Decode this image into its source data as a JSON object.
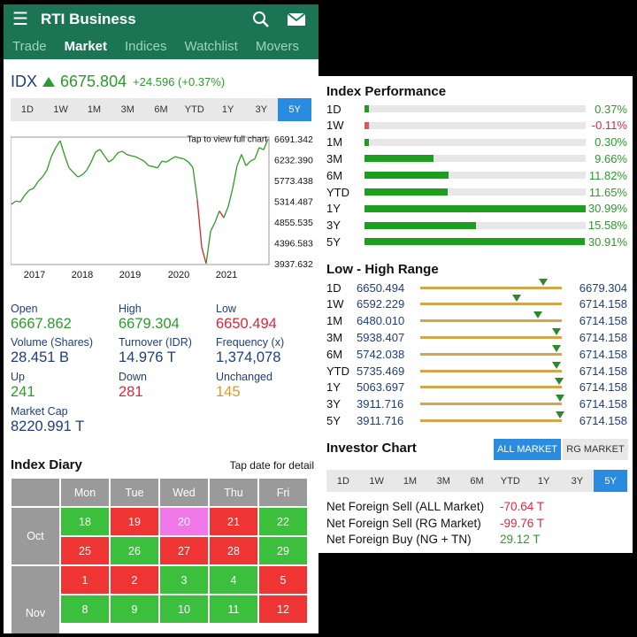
{
  "app": {
    "title": "RTI Business"
  },
  "nav_tabs": [
    {
      "label": "Trade",
      "active": false
    },
    {
      "label": "Market",
      "active": true
    },
    {
      "label": "Indices",
      "active": false
    },
    {
      "label": "Watchlist",
      "active": false
    },
    {
      "label": "Movers",
      "active": false
    }
  ],
  "index": {
    "name": "IDX",
    "value": "6675.804",
    "change": "+24.596 (+0.37%)"
  },
  "periods": [
    "1D",
    "1W",
    "1M",
    "3M",
    "6M",
    "YTD",
    "1Y",
    "3Y",
    "5Y"
  ],
  "active_period": "5Y",
  "chart": {
    "hint": "Tap to view full chart",
    "y_ticks": [
      "6691.342",
      "6232.390",
      "5773.438",
      "5314.487",
      "4855.535",
      "4396.583",
      "3937.632"
    ],
    "x_ticks": [
      "2017",
      "2018",
      "2019",
      "2020",
      "2021"
    ]
  },
  "chart_data": {
    "type": "line",
    "x_ticks": [
      "2017",
      "2018",
      "2019",
      "2020",
      "2021"
    ],
    "ylim": [
      3937.632,
      6691.342
    ],
    "grid": false,
    "series": [
      {
        "values": [
          5250,
          5320,
          5300,
          5450,
          5560,
          5600,
          5750,
          5850,
          6000,
          6300,
          6500,
          6650,
          6330,
          6050,
          5950,
          5850,
          5900,
          6000,
          6180,
          6400,
          6460,
          6320,
          6180,
          6250,
          6380,
          6420,
          6350,
          6320,
          6300,
          6250,
          6200,
          6100,
          6080,
          6050,
          6200,
          6180,
          6240,
          6300,
          6270,
          6250,
          6180,
          6060,
          5350,
          4300,
          3938,
          4650,
          4850,
          5100,
          4950,
          5200,
          5600,
          6100,
          6350,
          6100,
          6200,
          6250,
          6500,
          6450,
          6691
        ]
      }
    ]
  },
  "stats": {
    "open_label": "Open",
    "open": "6667.862",
    "high_label": "High",
    "high": "6679.304",
    "low_label": "Low",
    "low": "6650.494",
    "volume_label": "Volume (Shares)",
    "volume": "28.451 B",
    "turnover_label": "Turnover (IDR)",
    "turnover": "14.976 T",
    "frequency_label": "Frequency (x)",
    "frequency": "1,374,078",
    "up_label": "Up",
    "up": "241",
    "down_label": "Down",
    "down": "281",
    "unchanged_label": "Unchanged",
    "unchanged": "145",
    "mcap_label": "Market Cap",
    "mcap": "8220.991 T"
  },
  "diary": {
    "title": "Index Diary",
    "hint": "Tap date for detail",
    "days": [
      "Mon",
      "Tue",
      "Wed",
      "Thu",
      "Fri"
    ],
    "months": [
      "Oct",
      "Nov"
    ],
    "rows": [
      [
        {
          "d": "18",
          "c": "#3cbf3c"
        },
        {
          "d": "19",
          "c": "#ef3434"
        },
        {
          "d": "20",
          "c": "#f077e8"
        },
        {
          "d": "21",
          "c": "#ef3434"
        },
        {
          "d": "22",
          "c": "#3cbf3c"
        }
      ],
      [
        {
          "d": "25",
          "c": "#ef3434"
        },
        {
          "d": "26",
          "c": "#3cbf3c"
        },
        {
          "d": "27",
          "c": "#ef3434"
        },
        {
          "d": "28",
          "c": "#ef3434"
        },
        {
          "d": "29",
          "c": "#3cbf3c"
        }
      ],
      [
        {
          "d": "1",
          "c": "#ef3434"
        },
        {
          "d": "2",
          "c": "#ef3434"
        },
        {
          "d": "3",
          "c": "#3cbf3c"
        },
        {
          "d": "4",
          "c": "#3cbf3c"
        },
        {
          "d": "5",
          "c": "#ef3434"
        }
      ],
      [
        {
          "d": "8",
          "c": "#3cbf3c"
        },
        {
          "d": "9",
          "c": "#3cbf3c"
        },
        {
          "d": "10",
          "c": "#3cbf3c"
        },
        {
          "d": "11",
          "c": "#3cbf3c"
        },
        {
          "d": "12",
          "c": "#ef3434"
        }
      ]
    ]
  },
  "performance": {
    "title": "Index Performance",
    "rows": [
      {
        "label": "1D",
        "value": "0.37%",
        "pct": 0.37
      },
      {
        "label": "1W",
        "value": "-0.11%",
        "pct": -0.11
      },
      {
        "label": "1M",
        "value": "0.30%",
        "pct": 0.3
      },
      {
        "label": "3M",
        "value": "9.66%",
        "pct": 9.66
      },
      {
        "label": "6M",
        "value": "11.82%",
        "pct": 11.82
      },
      {
        "label": "YTD",
        "value": "11.65%",
        "pct": 11.65
      },
      {
        "label": "1Y",
        "value": "30.99%",
        "pct": 30.99
      },
      {
        "label": "3Y",
        "value": "15.58%",
        "pct": 15.58
      },
      {
        "label": "5Y",
        "value": "30.91%",
        "pct": 30.91
      }
    ]
  },
  "range": {
    "title": "Low - High Range",
    "rows": [
      {
        "label": "1D",
        "low": "6650.494",
        "high": "6679.304",
        "pos": 0.87
      },
      {
        "label": "1W",
        "low": "6592.229",
        "high": "6714.158",
        "pos": 0.68
      },
      {
        "label": "1M",
        "low": "6480.010",
        "high": "6714.158",
        "pos": 0.83
      },
      {
        "label": "3M",
        "low": "5938.407",
        "high": "6714.158",
        "pos": 0.96
      },
      {
        "label": "6M",
        "low": "5742.038",
        "high": "6714.158",
        "pos": 0.96
      },
      {
        "label": "YTD",
        "low": "5735.469",
        "high": "6714.158",
        "pos": 0.96
      },
      {
        "label": "1Y",
        "low": "5063.697",
        "high": "6714.158",
        "pos": 0.98
      },
      {
        "label": "3Y",
        "low": "3911.716",
        "high": "6714.158",
        "pos": 0.99
      },
      {
        "label": "5Y",
        "low": "3911.716",
        "high": "6714.158",
        "pos": 0.99
      }
    ]
  },
  "investor": {
    "title": "Investor Chart",
    "btn_all": "ALL MARKET",
    "btn_rg": "RG MARKET",
    "periods": [
      "1D",
      "1W",
      "1M",
      "3M",
      "6M",
      "YTD",
      "1Y",
      "3Y",
      "5Y"
    ],
    "active_period": "5Y",
    "flows": [
      {
        "label": "Net Foreign Sell (ALL Market)",
        "value": "-70.64 T",
        "color": "#d8283f"
      },
      {
        "label": "Net Foreign Sell (RG Market)",
        "value": "-99.76 T",
        "color": "#d8283f"
      },
      {
        "label": "Net Foreign Buy (NG + TN)",
        "value": "29.12 T",
        "color": "#2c9a2c"
      }
    ]
  },
  "colors": {
    "brand": "#1b7554",
    "accent": "#2a8ce0",
    "up": "#2c9a2c",
    "down": "#d8283f",
    "unchanged": "#e09a20"
  },
  "icons": {
    "menu": "menu-icon",
    "search": "search-icon",
    "mail": "mail-icon"
  }
}
